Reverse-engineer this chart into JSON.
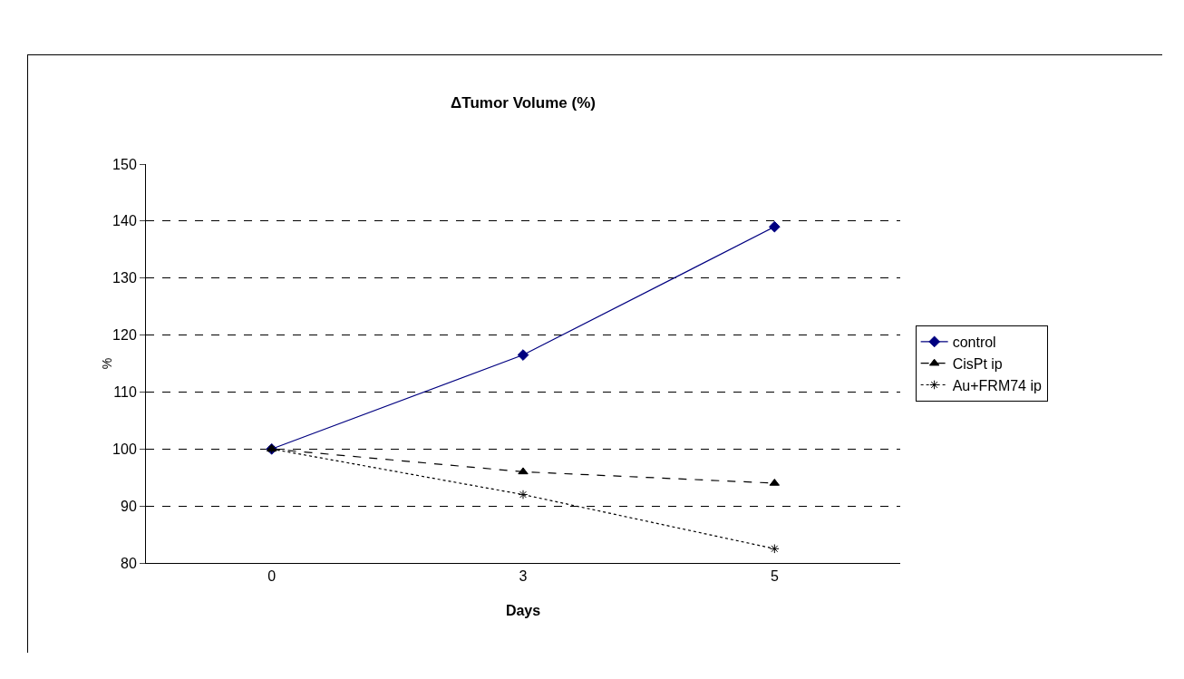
{
  "chart_data": {
    "type": "line",
    "title": "ΔTumor Volume (%)",
    "xlabel": "Days",
    "ylabel": "%",
    "categories": [
      "0",
      "3",
      "5"
    ],
    "series": [
      {
        "name": "control",
        "color": "#000080",
        "values": [
          100,
          116.5,
          139
        ],
        "marker": "diamond",
        "line_style": "solid"
      },
      {
        "name": "CisPt ip",
        "color": "#000000",
        "values": [
          100,
          96,
          94
        ],
        "marker": "triangle",
        "line_style": "dashed"
      },
      {
        "name": "Au+FRM74 ip",
        "color": "#000000",
        "values": [
          100,
          92,
          82.5
        ],
        "marker": "cross",
        "line_style": "dotted"
      }
    ],
    "ylim": [
      80,
      150
    ],
    "yticks": [
      80,
      90,
      100,
      110,
      120,
      130,
      140,
      150
    ],
    "grid": "y",
    "legend": "right"
  }
}
